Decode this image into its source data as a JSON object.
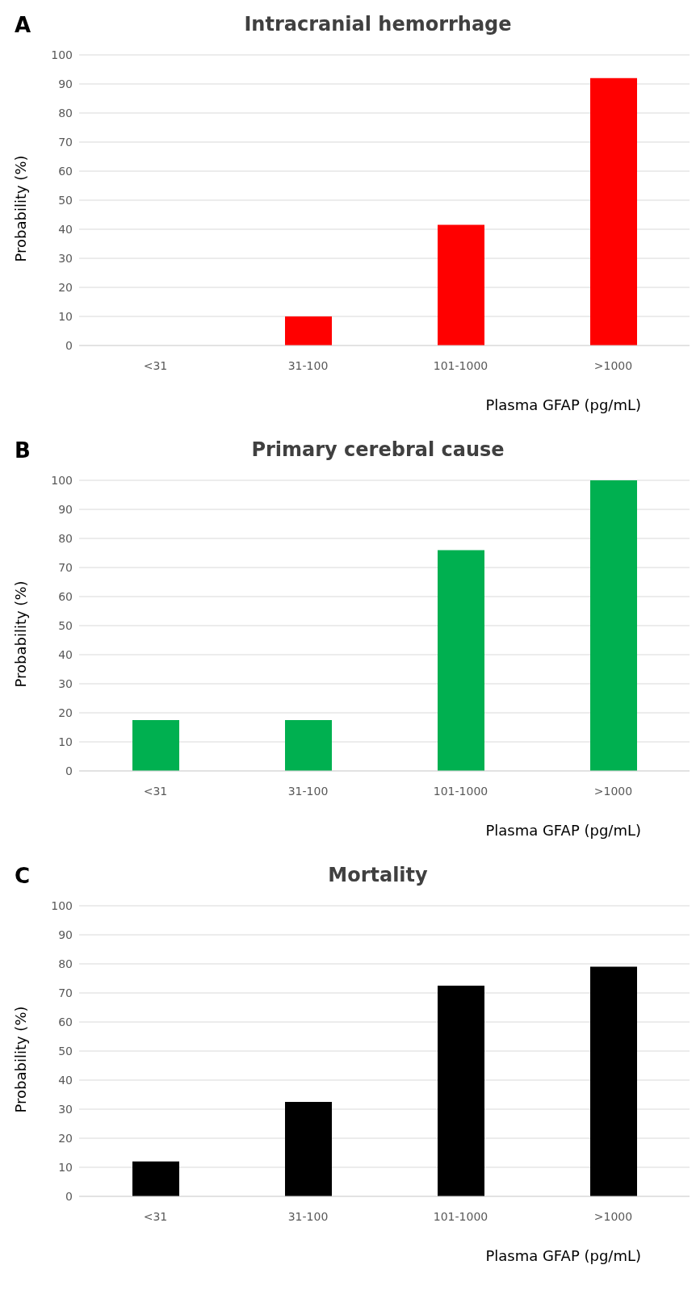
{
  "chart_data": [
    {
      "type": "bar",
      "title": "Intracranial  hemorrhage",
      "annotations": [
        "A"
      ],
      "xlabel": "Plasma GFAP  (pg/mL)",
      "ylabel": "Probability (%)",
      "categories": [
        "<31",
        "31-100",
        "101-1000",
        ">1000"
      ],
      "values": [
        0,
        10,
        41.5,
        92
      ],
      "color": "#ff0000",
      "ylim": [
        0,
        100
      ],
      "yticks": [
        0,
        10,
        20,
        30,
        40,
        50,
        60,
        70,
        80,
        90,
        100
      ],
      "grid": "y"
    },
    {
      "type": "bar",
      "title": "Primary  cerebral  cause",
      "annotations": [
        "B"
      ],
      "xlabel": "Plasma GFAP  (pg/mL)",
      "ylabel": "Probability (%)",
      "categories": [
        "<31",
        "31-100",
        "101-1000",
        ">1000"
      ],
      "values": [
        17.5,
        17.5,
        76,
        100
      ],
      "color": "#00b050",
      "ylim": [
        0,
        100
      ],
      "yticks": [
        0,
        10,
        20,
        30,
        40,
        50,
        60,
        70,
        80,
        90,
        100
      ],
      "grid": "y"
    },
    {
      "type": "bar",
      "title": "Mortality",
      "annotations": [
        "C"
      ],
      "xlabel": "Plasma GFAP  (pg/mL)",
      "ylabel": "Probability (%)",
      "categories": [
        "<31",
        "31-100",
        "101-1000",
        ">1000"
      ],
      "values": [
        12,
        32.5,
        72.5,
        79
      ],
      "color": "#000000",
      "ylim": [
        0,
        100
      ],
      "yticks": [
        0,
        10,
        20,
        30,
        40,
        50,
        60,
        70,
        80,
        90,
        100
      ],
      "grid": "y"
    }
  ]
}
